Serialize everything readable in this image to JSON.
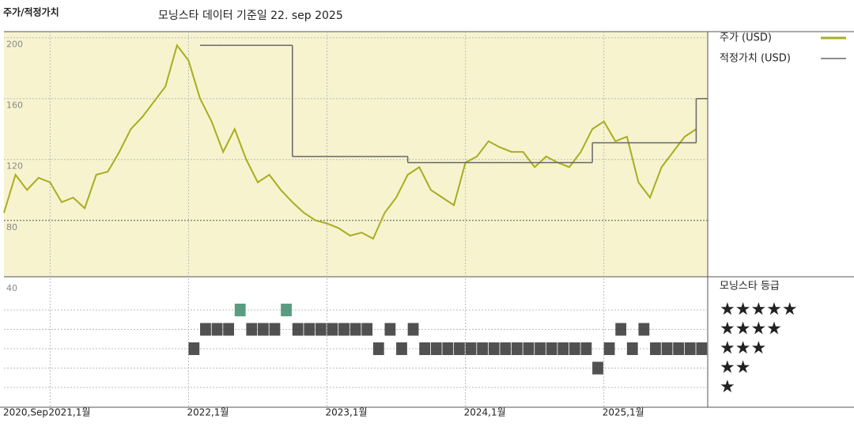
{
  "chart_data": {
    "type": "line",
    "header": "주가/적정가치",
    "title": "모닝스타 데이터 기준일 22. sep 2025",
    "x": [
      "2020-09",
      "2020-10",
      "2020-11",
      "2020-12",
      "2021-01",
      "2021-02",
      "2021-03",
      "2021-04",
      "2021-05",
      "2021-06",
      "2021-07",
      "2021-08",
      "2021-09",
      "2021-10",
      "2021-11",
      "2021-12",
      "2022-01",
      "2022-02",
      "2022-03",
      "2022-04",
      "2022-05",
      "2022-06",
      "2022-07",
      "2022-08",
      "2022-09",
      "2022-10",
      "2022-11",
      "2022-12",
      "2023-01",
      "2023-02",
      "2023-03",
      "2023-04",
      "2023-05",
      "2023-06",
      "2023-07",
      "2023-08",
      "2023-09",
      "2023-10",
      "2023-11",
      "2023-12",
      "2024-01",
      "2024-02",
      "2024-03",
      "2024-04",
      "2024-05",
      "2024-06",
      "2024-07",
      "2024-08",
      "2024-09",
      "2024-10",
      "2024-11",
      "2024-12",
      "2025-01",
      "2025-02",
      "2025-03",
      "2025-04",
      "2025-05",
      "2025-06",
      "2025-07",
      "2025-08",
      "2025-09"
    ],
    "xlim": [
      "2020-09",
      "2025-10"
    ],
    "xticks": [
      {
        "value": "2020-09",
        "label": "2020,Sep"
      },
      {
        "value": "2021-01",
        "label": "2021,1월"
      },
      {
        "value": "2022-01",
        "label": "2022,1월"
      },
      {
        "value": "2023-01",
        "label": "2023,1월"
      },
      {
        "value": "2024-01",
        "label": "2024,1월"
      },
      {
        "value": "2025-01",
        "label": "2025,1월"
      }
    ],
    "ylim": [
      43,
      204
    ],
    "yticks": [
      40,
      80,
      120,
      160,
      200
    ],
    "grid": true,
    "series": [
      {
        "name": "주가 (USD)",
        "color": "#a9ad1f",
        "values": [
          85,
          110,
          100,
          108,
          105,
          92,
          95,
          88,
          110,
          112,
          125,
          140,
          148,
          158,
          168,
          195,
          185,
          160,
          145,
          125,
          140,
          120,
          105,
          110,
          100,
          92,
          85,
          80,
          78,
          75,
          70,
          72,
          68,
          85,
          95,
          110,
          115,
          100,
          95,
          90,
          118,
          122,
          132,
          128,
          125,
          125,
          115,
          122,
          118,
          115,
          125,
          140,
          145,
          132,
          135,
          105,
          95,
          115,
          125,
          135,
          140
        ]
      },
      {
        "name": "적정가치 (USD)",
        "color": "#666666",
        "step": true,
        "values": [
          null,
          null,
          null,
          null,
          null,
          null,
          null,
          null,
          null,
          null,
          null,
          null,
          null,
          null,
          null,
          null,
          null,
          195,
          195,
          195,
          195,
          195,
          195,
          195,
          195,
          122,
          122,
          122,
          122,
          122,
          122,
          122,
          122,
          122,
          122,
          118,
          118,
          118,
          118,
          118,
          118,
          118,
          118,
          118,
          118,
          118,
          118,
          118,
          118,
          118,
          118,
          131,
          131,
          131,
          131,
          131,
          131,
          131,
          131,
          131,
          160
        ]
      }
    ],
    "rating": {
      "title": "모닝스타 등급",
      "star_labels": [
        "★",
        "★★",
        "★★★",
        "★★★★",
        "★★★★★"
      ],
      "colors": {
        "top": "#3d8c6c",
        "other": "#333333"
      },
      "values": [
        null,
        null,
        null,
        null,
        null,
        null,
        null,
        null,
        null,
        null,
        null,
        null,
        null,
        null,
        null,
        null,
        3,
        4,
        4,
        4,
        5,
        4,
        4,
        4,
        5,
        4,
        4,
        4,
        4,
        4,
        4,
        4,
        3,
        4,
        3,
        4,
        3,
        3,
        3,
        3,
        3,
        3,
        3,
        3,
        3,
        3,
        3,
        3,
        3,
        3,
        3,
        2,
        3,
        4,
        3,
        4,
        3,
        3,
        3,
        3,
        3
      ]
    }
  }
}
